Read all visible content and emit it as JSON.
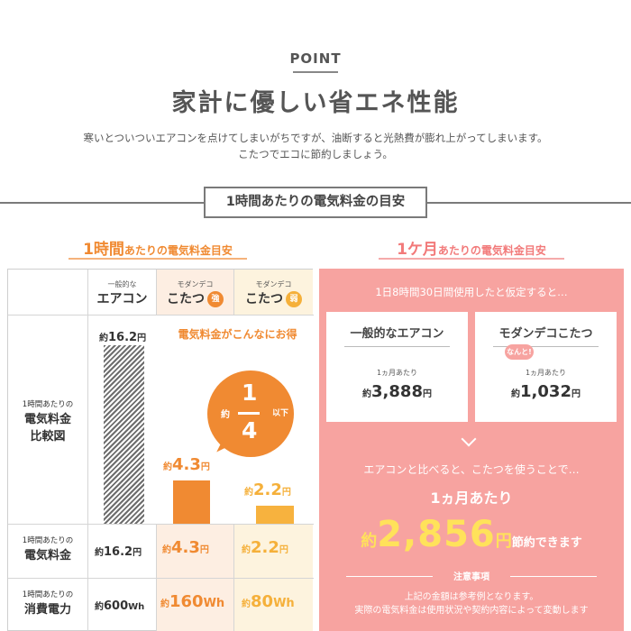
{
  "header": {
    "label": "POINT",
    "title": "家計に優しい省エネ性能",
    "intro_line1": "寒いとついついエアコンを点けてしまいがちですが、油断すると光熱費が膨れ上がってしまいます。",
    "intro_line2": "こたつでエコに節約しましょう。"
  },
  "section_title": "1時間あたりの電気料金の目安",
  "left": {
    "title_big": "1時間",
    "title_small": "あたりの電気料金目安",
    "columns": [
      {
        "small": "一般的な",
        "big": "エアコン"
      },
      {
        "small": "モダンデコ",
        "big": "こたつ",
        "badge": "強"
      },
      {
        "small": "モダンデコ",
        "big": "こたつ",
        "badge": "弱"
      }
    ],
    "chart_row": {
      "small": "1時間あたりの",
      "big1": "電気料金",
      "big2": "比較図"
    },
    "callout": "電気料金がこんなにお得",
    "bubble": {
      "prefix": "約",
      "numerator": "1",
      "denominator": "4",
      "suffix": "以下"
    },
    "bar_labels": [
      {
        "pre": "約",
        "n": "16.2",
        "suf": "円"
      },
      {
        "pre": "約",
        "n": "4.3",
        "suf": "円"
      },
      {
        "pre": "約",
        "n": "2.2",
        "suf": "円"
      }
    ],
    "cost_row": {
      "small": "1時間あたりの",
      "big": "電気料金",
      "values": [
        {
          "pre": "約",
          "n": "16.2",
          "suf": "円"
        },
        {
          "pre": "約",
          "n": "4.3",
          "suf": "円"
        },
        {
          "pre": "約",
          "n": "2.2",
          "suf": "円"
        }
      ]
    },
    "power_row": {
      "small": "1時間あたりの",
      "big": "消費電力",
      "values": [
        {
          "pre": "約",
          "n": "600",
          "suf": "Wh"
        },
        {
          "pre": "約",
          "n": "160",
          "suf": "Wh"
        },
        {
          "pre": "約",
          "n": "80",
          "suf": "Wh"
        }
      ]
    }
  },
  "chart_data": {
    "type": "bar",
    "categories": [
      "一般的なエアコン",
      "モダンデコこたつ 強",
      "モダンデコこたつ 弱"
    ],
    "values": [
      16.2,
      4.3,
      2.2
    ],
    "colors": [
      "#6d6d6d",
      "#f08a32",
      "#f7b23e"
    ]
  },
  "right": {
    "title_big": "1ケ月",
    "title_small": "あたりの電気料金目安",
    "condition": "1日8時間30日間使用したと仮定すると…",
    "cards": [
      {
        "name": "一般的なエアコン",
        "per": "1ヵ月あたり",
        "pre": "約",
        "n": "3,888",
        "suf": "円"
      },
      {
        "name": "モダンデコこたつ",
        "per": "1ヵ月あたり",
        "pre": "約",
        "n": "1,032",
        "suf": "円",
        "tag": "なんと!"
      }
    ],
    "compare": "エアコンと比べると、こたつを使うことで…",
    "month": "1ヵ月あたり",
    "saving": {
      "pre": "約",
      "n": "2,856",
      "yen": "円",
      "tail": "節約できます"
    },
    "notice_title": "注意事項",
    "notice_line1": "上記の金額は参考例となります。",
    "notice_line2": "実際の電気料金は使用状況や契約内容によって変動します"
  }
}
